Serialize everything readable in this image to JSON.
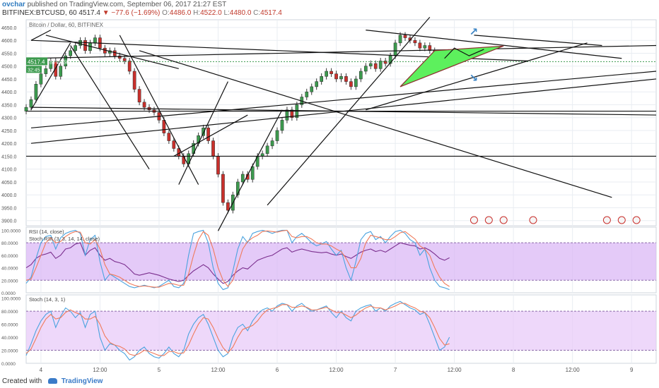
{
  "header": {
    "author": "ovchar",
    "published_text": "published on TradingView.com, September 06, 2017 21:27 EST",
    "symbol": "BITFINEX:BTCUSD, 60",
    "last": "4517.4",
    "change": "▼ −77.6 (−1.69%)",
    "o_label": "O:",
    "o_value": "4486.0",
    "h_label": "H:",
    "h_value": "4522.0",
    "l_label": "L:",
    "l_value": "4480.0",
    "c_label": "C:",
    "c_value": "4517.4"
  },
  "footer": {
    "created_with": "Created with",
    "brand": "TradingView"
  },
  "colors": {
    "up": "#26a69a",
    "down": "#ef5350",
    "upBody": "#3c9a4e",
    "downBody": "#c9302c",
    "grid": "#e9edf2",
    "rsi_fill": "#d9b3f5",
    "stoch_fill": "#e7c8f8",
    "triangle_fill": "#5df05d"
  },
  "chart_data": [
    {
      "type": "candlestick",
      "title": "Bitcoin / Dollar, 60, BITFINEX",
      "price_label": "4517.4",
      "price_label2": "BTCUSD",
      "countdown_label": "32:45",
      "y_ticks": [
        "4650.0",
        "4600.0",
        "4550.0",
        "4500.0",
        "4450.0",
        "4400.0",
        "4350.0",
        "4300.0",
        "4250.0",
        "4200.0",
        "4150.0",
        "4100.0",
        "4050.0",
        "4000.0",
        "3950.0",
        "3900.0"
      ],
      "y_values": [
        4650,
        4600,
        4550,
        4500,
        4450,
        4400,
        4350,
        4300,
        4250,
        4200,
        4150,
        4100,
        4050,
        4000,
        3950,
        3900
      ],
      "ylim": [
        3880,
        4680
      ],
      "x_ticks": [
        "4",
        "12:00",
        "5",
        "12:00",
        "6",
        "12:00",
        "7",
        "12:00",
        "8",
        "12:00",
        "9"
      ],
      "x_tick_hours": [
        24,
        36,
        48,
        60,
        72,
        84,
        96,
        108,
        120,
        132,
        144
      ],
      "xlim": [
        21,
        149
      ],
      "closes": [
        4340,
        4370,
        4430,
        4470,
        4490,
        4520,
        4460,
        4500,
        4540,
        4560,
        4580,
        4600,
        4560,
        4590,
        4610,
        4570,
        4550,
        4560,
        4540,
        4530,
        4520,
        4480,
        4410,
        4360,
        4340,
        4330,
        4320,
        4290,
        4240,
        4210,
        4180,
        4150,
        4120,
        4160,
        4200,
        4230,
        4260,
        4210,
        4150,
        4080,
        3970,
        3940,
        4000,
        4050,
        4080,
        4060,
        4110,
        4150,
        4160,
        4190,
        4210,
        4250,
        4290,
        4330,
        4300,
        4350,
        4380,
        4400,
        4420,
        4440,
        4460,
        4480,
        4470,
        4450,
        4460,
        4440,
        4420,
        4450,
        4480,
        4500,
        4510,
        4490,
        4520,
        4510,
        4540,
        4590,
        4620,
        4610,
        4600,
        4590,
        4570,
        4580,
        4560,
        4530,
        4510,
        4520,
        4517.4
      ],
      "start_hour": 21,
      "annotations": {
        "horizontal_lines": [
          4150,
          4325
        ],
        "current_price_line": 4517.4
      }
    },
    {
      "type": "line",
      "title": "RSI (14, close)",
      "title2": "Stoch RSI (3, 3, 14, 14, close)",
      "y_ticks": [
        "100.0000",
        "80.0000",
        "60.0000",
        "40.0000",
        "20.0000",
        "0.0000"
      ],
      "y_values": [
        100,
        80,
        60,
        40,
        20,
        0
      ],
      "ylim": [
        0,
        105
      ],
      "bands": [
        20,
        80
      ],
      "series": [
        {
          "name": "RSI",
          "color": "#7b2f8e",
          "values": [
            40,
            45,
            55,
            60,
            62,
            65,
            55,
            60,
            70,
            72,
            78,
            80,
            60,
            68,
            72,
            60,
            52,
            55,
            50,
            48,
            45,
            38,
            30,
            28,
            30,
            32,
            30,
            28,
            25,
            22,
            20,
            18,
            20,
            28,
            35,
            40,
            45,
            40,
            30,
            22,
            15,
            18,
            28,
            35,
            40,
            38,
            45,
            52,
            55,
            58,
            60,
            65,
            70,
            72,
            65,
            68,
            70,
            68,
            66,
            65,
            64,
            65,
            62,
            60,
            62,
            58,
            55,
            60,
            65,
            68,
            70,
            66,
            68,
            65,
            70,
            75,
            80,
            78,
            76,
            75,
            70,
            72,
            68,
            62,
            55,
            52,
            56
          ]
        },
        {
          "name": "Stoch RSI K",
          "color": "#4aa3df",
          "values": [
            15,
            25,
            55,
            80,
            90,
            92,
            70,
            88,
            95,
            98,
            100,
            95,
            60,
            85,
            92,
            50,
            20,
            30,
            25,
            20,
            15,
            10,
            8,
            10,
            12,
            10,
            8,
            10,
            15,
            20,
            10,
            8,
            15,
            60,
            95,
            98,
            100,
            80,
            40,
            15,
            5,
            8,
            35,
            70,
            90,
            80,
            95,
            98,
            100,
            98,
            95,
            98,
            100,
            100,
            80,
            90,
            95,
            88,
            80,
            75,
            78,
            82,
            70,
            60,
            68,
            40,
            20,
            50,
            85,
            95,
            98,
            85,
            90,
            80,
            90,
            98,
            100,
            95,
            85,
            80,
            60,
            70,
            40,
            20,
            10,
            8,
            5
          ]
        },
        {
          "name": "Stoch RSI D",
          "color": "#f07a5a",
          "values": [
            20,
            22,
            40,
            60,
            80,
            88,
            80,
            82,
            90,
            95,
            98,
            97,
            80,
            78,
            85,
            70,
            45,
            30,
            28,
            25,
            20,
            15,
            12,
            10,
            11,
            10,
            9,
            9,
            12,
            15,
            14,
            12,
            12,
            30,
            60,
            85,
            98,
            92,
            70,
            40,
            20,
            10,
            20,
            45,
            70,
            82,
            88,
            92,
            98,
            99,
            98,
            97,
            99,
            100,
            90,
            88,
            90,
            90,
            86,
            80,
            78,
            78,
            75,
            70,
            66,
            55,
            40,
            40,
            55,
            80,
            92,
            90,
            88,
            85,
            85,
            90,
            96,
            98,
            92,
            86,
            75,
            70,
            60,
            40,
            25,
            15,
            10
          ]
        }
      ]
    },
    {
      "type": "line",
      "title": "Stoch (14, 3, 1)",
      "y_ticks": [
        "100.0000",
        "80.0000",
        "60.0000",
        "40.0000",
        "20.0000",
        "0.0000"
      ],
      "y_values": [
        100,
        80,
        60,
        40,
        20,
        0
      ],
      "ylim": [
        0,
        105
      ],
      "bands": [
        20,
        80
      ],
      "series": [
        {
          "name": "Stoch K",
          "color": "#4aa3df",
          "values": [
            12,
            30,
            50,
            65,
            75,
            80,
            55,
            72,
            85,
            80,
            70,
            78,
            55,
            75,
            80,
            40,
            20,
            30,
            28,
            20,
            15,
            5,
            10,
            20,
            25,
            15,
            10,
            8,
            15,
            25,
            15,
            10,
            20,
            45,
            60,
            70,
            75,
            60,
            40,
            20,
            10,
            15,
            40,
            55,
            60,
            50,
            65,
            75,
            82,
            85,
            80,
            88,
            92,
            90,
            80,
            88,
            92,
            85,
            80,
            82,
            85,
            88,
            78,
            70,
            80,
            70,
            65,
            80,
            85,
            88,
            90,
            80,
            85,
            80,
            88,
            92,
            95,
            90,
            85,
            82,
            75,
            78,
            60,
            40,
            20,
            25,
            40
          ]
        },
        {
          "name": "Stoch D",
          "color": "#f07a5a",
          "values": [
            15,
            22,
            38,
            55,
            68,
            75,
            68,
            70,
            78,
            82,
            78,
            75,
            68,
            68,
            72,
            60,
            42,
            32,
            28,
            26,
            22,
            14,
            12,
            15,
            20,
            18,
            15,
            12,
            12,
            18,
            18,
            15,
            16,
            28,
            45,
            60,
            70,
            68,
            55,
            38,
            24,
            16,
            25,
            40,
            52,
            55,
            58,
            65,
            75,
            82,
            84,
            86,
            90,
            90,
            86,
            86,
            88,
            86,
            82,
            82,
            84,
            86,
            82,
            78,
            78,
            74,
            70,
            74,
            80,
            85,
            88,
            85,
            85,
            82,
            85,
            88,
            92,
            92,
            88,
            85,
            80,
            78,
            70,
            55,
            38,
            28,
            30
          ]
        }
      ]
    }
  ]
}
